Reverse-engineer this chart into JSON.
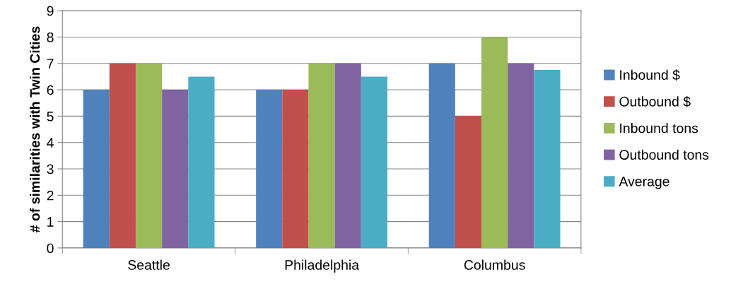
{
  "chart_data": {
    "type": "bar",
    "ylabel": "# of similarities with Twin Cities",
    "categories": [
      "Seattle",
      "Philadelphia",
      "Columbus"
    ],
    "series": [
      {
        "name": "Inbound $",
        "color": "#4f81bd",
        "values": [
          6,
          6,
          7
        ]
      },
      {
        "name": "Outbound $",
        "color": "#c0504d",
        "values": [
          7,
          6,
          5
        ]
      },
      {
        "name": "Inbound tons",
        "color": "#9bbb59",
        "values": [
          7,
          7,
          8
        ]
      },
      {
        "name": "Outbound tons",
        "color": "#8064a2",
        "values": [
          6,
          7,
          7
        ]
      },
      {
        "name": "Average",
        "color": "#4bacc6",
        "values": [
          6.5,
          6.5,
          6.75
        ]
      }
    ],
    "ylim": [
      0,
      9
    ],
    "yticks": [
      0,
      1,
      2,
      3,
      4,
      5,
      6,
      7,
      8,
      9
    ],
    "grid": "y",
    "legend": "right"
  }
}
